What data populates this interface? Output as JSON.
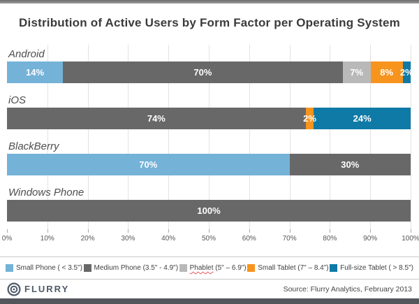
{
  "chart_data": {
    "type": "bar",
    "stacked": true,
    "orientation": "horizontal",
    "title": "Distribution of Active Users by Form Factor per Operating System",
    "categories": [
      "Android",
      "iOS",
      "BlackBerry",
      "Windows Phone"
    ],
    "series": [
      {
        "name": "Small Phone",
        "range": "( < 3.5\")",
        "color": "#74b2d8",
        "misspelled": false,
        "values": [
          14,
          0,
          70,
          0
        ]
      },
      {
        "name": "Medium Phone",
        "range": "(3.5\" - 4.9\")",
        "color": "#686868",
        "misspelled": false,
        "values": [
          70,
          74,
          30,
          100
        ]
      },
      {
        "name": "Phablet",
        "range": "(5\" – 6.9\")",
        "color": "#b9b9b9",
        "misspelled": true,
        "values": [
          7,
          0,
          0,
          0
        ]
      },
      {
        "name": "Small Tablet",
        "range": "(7\" – 8.4\")",
        "color": "#f7941e",
        "misspelled": false,
        "values": [
          8,
          2,
          0,
          0
        ]
      },
      {
        "name": "Full-size Tablet",
        "range": "( > 8.5\")",
        "color": "#0f7aa6",
        "misspelled": false,
        "values": [
          2,
          24,
          0,
          0
        ]
      }
    ],
    "x_ticks": [
      "0%",
      "10%",
      "20%",
      "30%",
      "40%",
      "50%",
      "60%",
      "70%",
      "80%",
      "90%",
      "100%"
    ],
    "xlim": [
      0,
      100
    ],
    "grid": "vertical",
    "legend_position": "bottom",
    "value_label_suffix": "%"
  },
  "footer": {
    "logo_text": "FLURRY",
    "source": "Source: Flurry Analytics, February 2013"
  }
}
